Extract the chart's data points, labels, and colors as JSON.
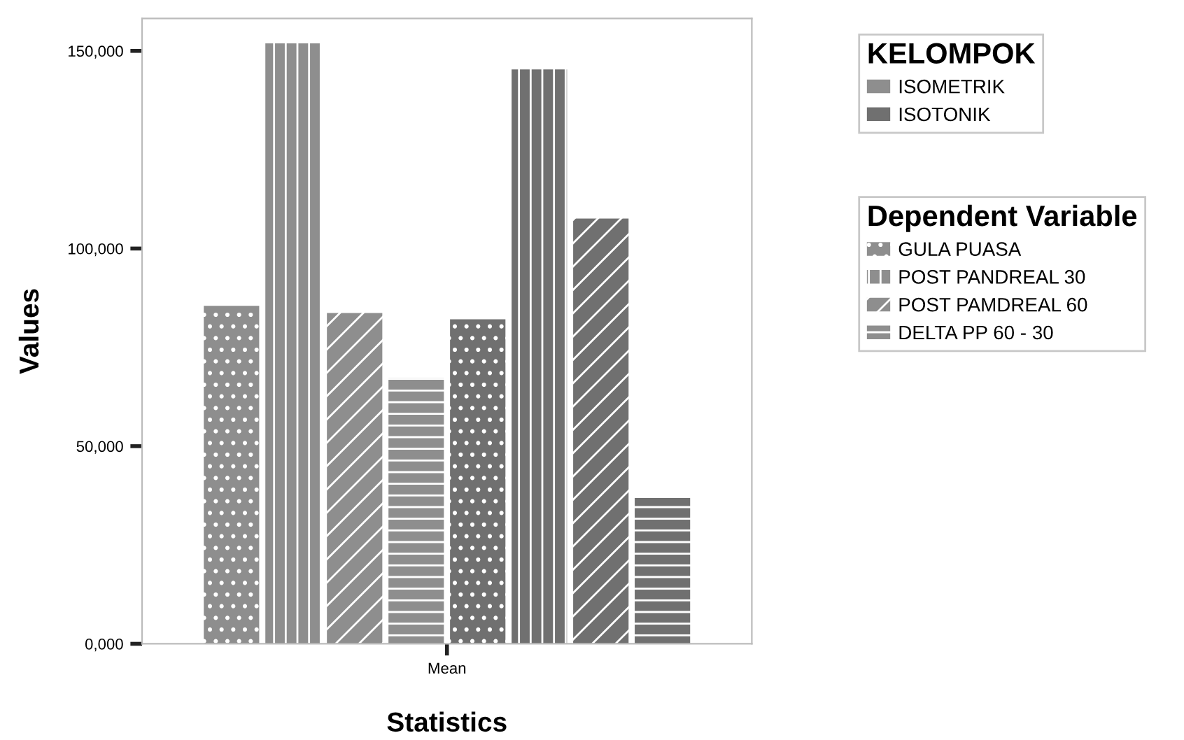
{
  "chart_data": {
    "type": "bar",
    "xlabel": "Statistics",
    "ylabel": "Values",
    "categories": [
      "Mean"
    ],
    "ylim": [
      0,
      158200
    ],
    "yticks": [
      {
        "value": 0,
        "label": "0,000"
      },
      {
        "value": 50000,
        "label": "50,000"
      },
      {
        "value": 100000,
        "label": "100,000"
      },
      {
        "value": 150000,
        "label": "150,000"
      }
    ],
    "grid": false,
    "legend": "top right",
    "legend_title": "Dependent Variable",
    "annotations": [
      "KELOMPOK",
      "ISOMETRIK",
      "ISOTONIK"
    ],
    "series": [
      {
        "name": "GULA PUASA",
        "color": "#8e8e8e",
        "values": [
          85500
        ]
      },
      {
        "name": "POST PANDREAL 30",
        "color": "#8e8e8e",
        "values": [
          151900
        ]
      },
      {
        "name": "POST PAMDREAL 60",
        "color": "#8e8e8e",
        "values": [
          83700
        ]
      },
      {
        "name": "DELTA PP 60 - 30",
        "color": "#8e8e8e",
        "values": [
          67300
        ]
      },
      {
        "color": "#707070",
        "values": [
          82100
        ]
      },
      {
        "color": "#707070",
        "values": [
          145300
        ]
      },
      {
        "color": "#707070",
        "values": [
          107600
        ]
      },
      {
        "color": "#707070",
        "values": [
          36900
        ]
      }
    ]
  }
}
